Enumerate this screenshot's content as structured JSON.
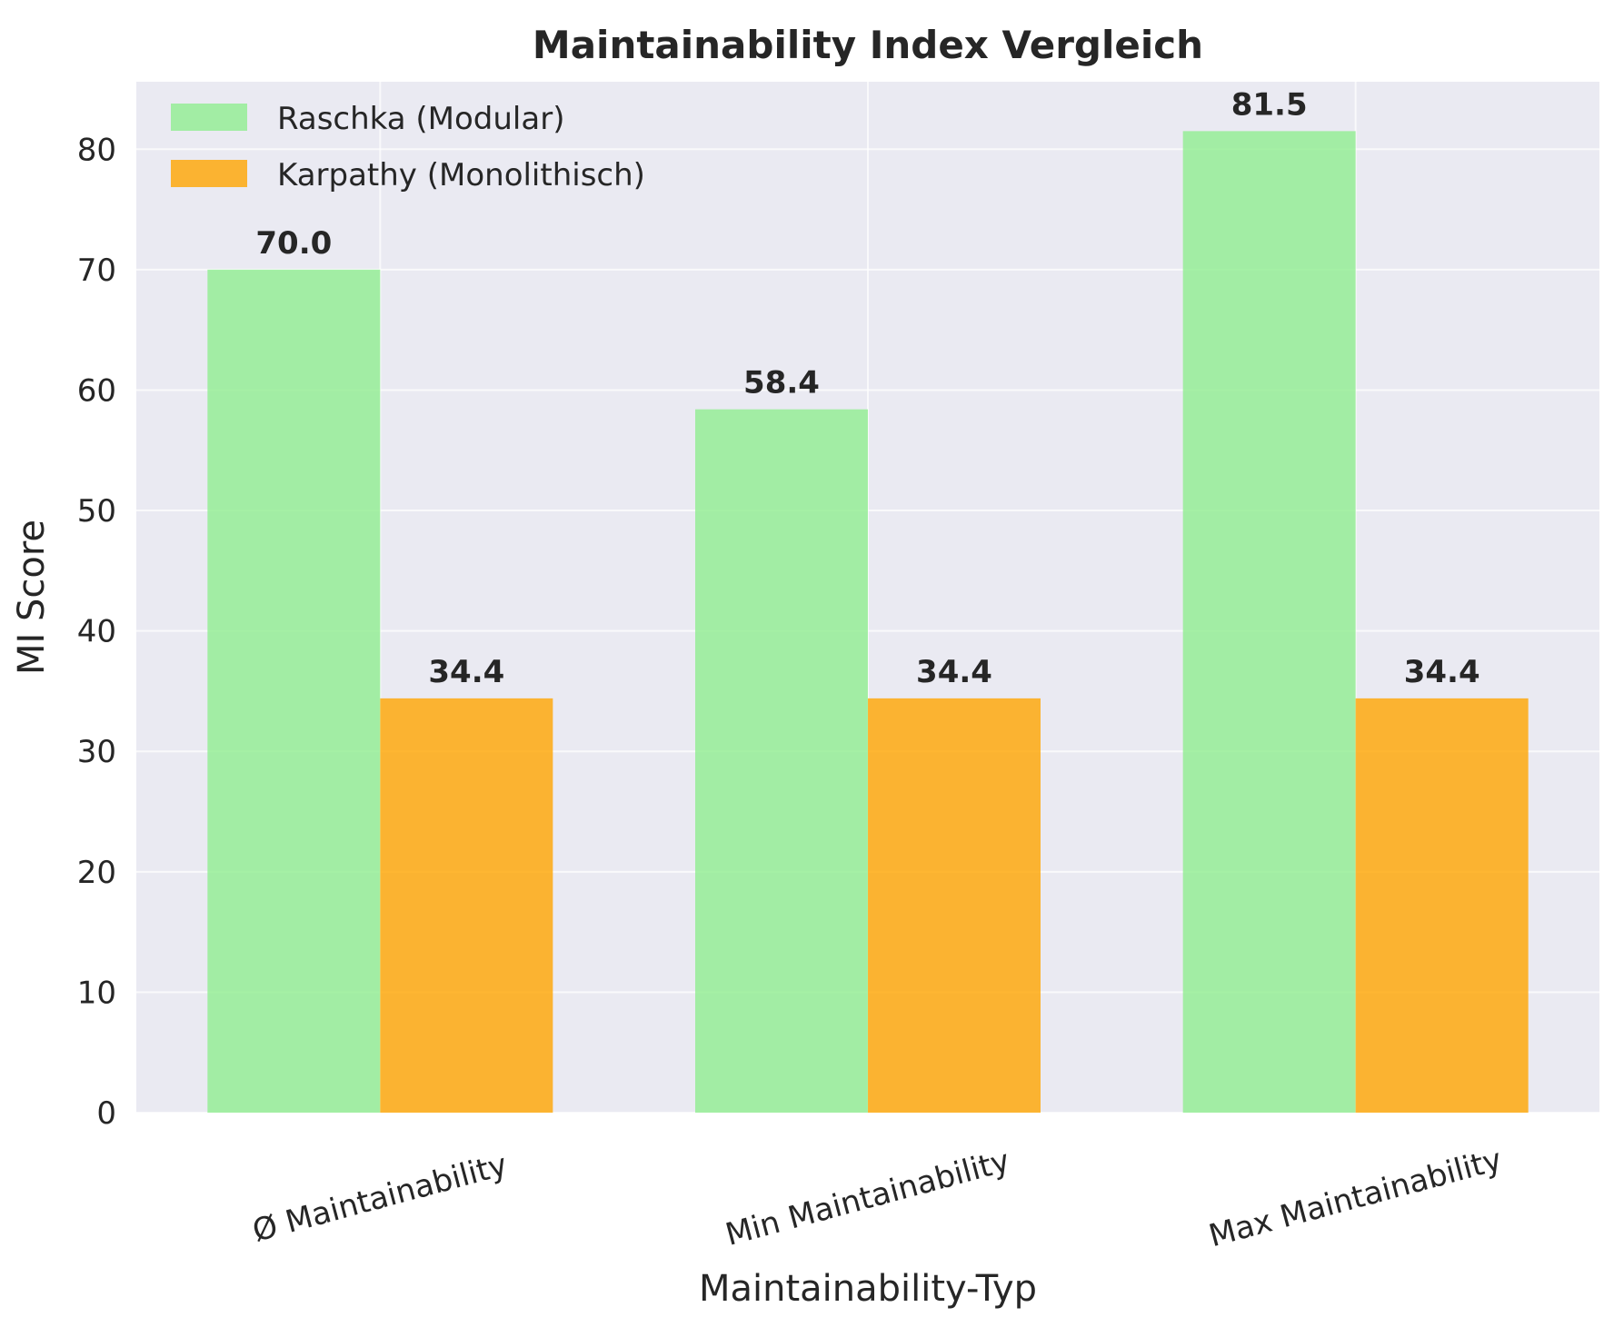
{
  "chart_data": {
    "type": "bar",
    "title": "Maintainability Index Vergleich",
    "xlabel": "Maintainability-Typ",
    "ylabel": "MI Score",
    "categories": [
      "Ø Maintainability",
      "Min Maintainability",
      "Max Maintainability"
    ],
    "series": [
      {
        "name": "Raschka (Modular)",
        "values": [
          70.0,
          58.4,
          81.5
        ],
        "color": "#90ee90",
        "labels": [
          "70.0",
          "58.4",
          "81.5"
        ]
      },
      {
        "name": "Karpathy (Monolithisch)",
        "values": [
          34.4,
          34.4,
          34.4
        ],
        "color": "#ffa500",
        "labels": [
          "34.4",
          "34.4",
          "34.4"
        ]
      }
    ],
    "ylim": [
      0,
      85.6
    ],
    "yticks": [
      0,
      10,
      20,
      30,
      40,
      50,
      60,
      70,
      80
    ],
    "grid": true,
    "legend_position": "top-left",
    "colors": {
      "background": "#eaeaf2",
      "grid": "#ffffff",
      "text": "#262626"
    }
  }
}
